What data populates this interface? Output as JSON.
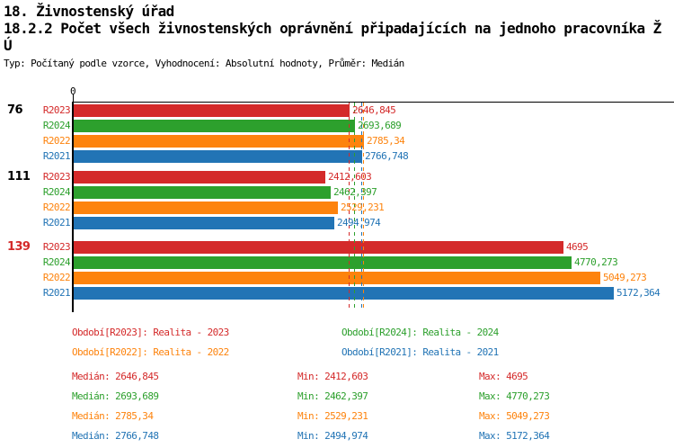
{
  "header": {
    "title_line1": "18. Živnostenský úřad",
    "title_line2": "18.2.2 Počet všech živnostenských oprávnění připadajících na jednoho pracovníka Ž",
    "title_line3": "Ú",
    "subtitle": "Typ: Počítaný podle vzorce, Vyhodnocení: Absolutní hodnoty, Průměr: Medián"
  },
  "chart_data": {
    "type": "bar",
    "orientation": "horizontal",
    "title": "18.2.2 Počet všech živnostenských oprávnění připadajících na jednoho pracovníka ŽÚ",
    "xlabel": "",
    "ylabel": "",
    "xlim": [
      0,
      5760
    ],
    "zero_tick_label": "0",
    "grid": false,
    "colors": {
      "R2023": "#d42a2a",
      "R2024": "#2da02d",
      "R2022": "#fd830d",
      "R2021": "#2274b5"
    },
    "groups": [
      {
        "label": "76",
        "label_color": "#000000",
        "bars": [
          {
            "series": "R2023",
            "value": 2646.845,
            "value_label": "2646,845"
          },
          {
            "series": "R2024",
            "value": 2693.689,
            "value_label": "2693,689"
          },
          {
            "series": "R2022",
            "value": 2785.34,
            "value_label": "2785,34"
          },
          {
            "series": "R2021",
            "value": 2766.748,
            "value_label": "2766,748"
          }
        ]
      },
      {
        "label": "111",
        "label_color": "#000000",
        "bars": [
          {
            "series": "R2023",
            "value": 2412.603,
            "value_label": "2412,603"
          },
          {
            "series": "R2024",
            "value": 2462.397,
            "value_label": "2462,397"
          },
          {
            "series": "R2022",
            "value": 2529.231,
            "value_label": "2529,231"
          },
          {
            "series": "R2021",
            "value": 2494.974,
            "value_label": "2494,974"
          }
        ]
      },
      {
        "label": "139",
        "label_color": "#d42a2a",
        "bars": [
          {
            "series": "R2023",
            "value": 4695,
            "value_label": "4695"
          },
          {
            "series": "R2024",
            "value": 4770.273,
            "value_label": "4770,273"
          },
          {
            "series": "R2022",
            "value": 5049.273,
            "value_label": "5049,273"
          },
          {
            "series": "R2021",
            "value": 5172.364,
            "value_label": "5172,364"
          }
        ]
      }
    ],
    "medians": [
      {
        "series": "R2023",
        "value": 2646.845
      },
      {
        "series": "R2024",
        "value": 2693.689
      },
      {
        "series": "R2021",
        "value": 2766.748
      },
      {
        "series": "R2022",
        "value": 2785.34
      }
    ]
  },
  "legend": [
    {
      "series": "R2023",
      "label": "Období[R2023]: Realita - 2023"
    },
    {
      "series": "R2024",
      "label": "Období[R2024]: Realita - 2024"
    },
    {
      "series": "R2022",
      "label": "Období[R2022]: Realita - 2022"
    },
    {
      "series": "R2021",
      "label": "Období[R2021]: Realita - 2021"
    }
  ],
  "stats": [
    {
      "series": "R2023",
      "median": "Medián: 2646,845",
      "min": "Min: 2412,603",
      "max": "Max: 4695"
    },
    {
      "series": "R2024",
      "median": "Medián: 2693,689",
      "min": "Min: 2462,397",
      "max": "Max: 4770,273"
    },
    {
      "series": "R2022",
      "median": "Medián: 2785,34",
      "min": "Min: 2529,231",
      "max": "Max: 5049,273"
    },
    {
      "series": "R2021",
      "median": "Medián: 2766,748",
      "min": "Min: 2494,974",
      "max": "Max: 5172,364"
    }
  ]
}
